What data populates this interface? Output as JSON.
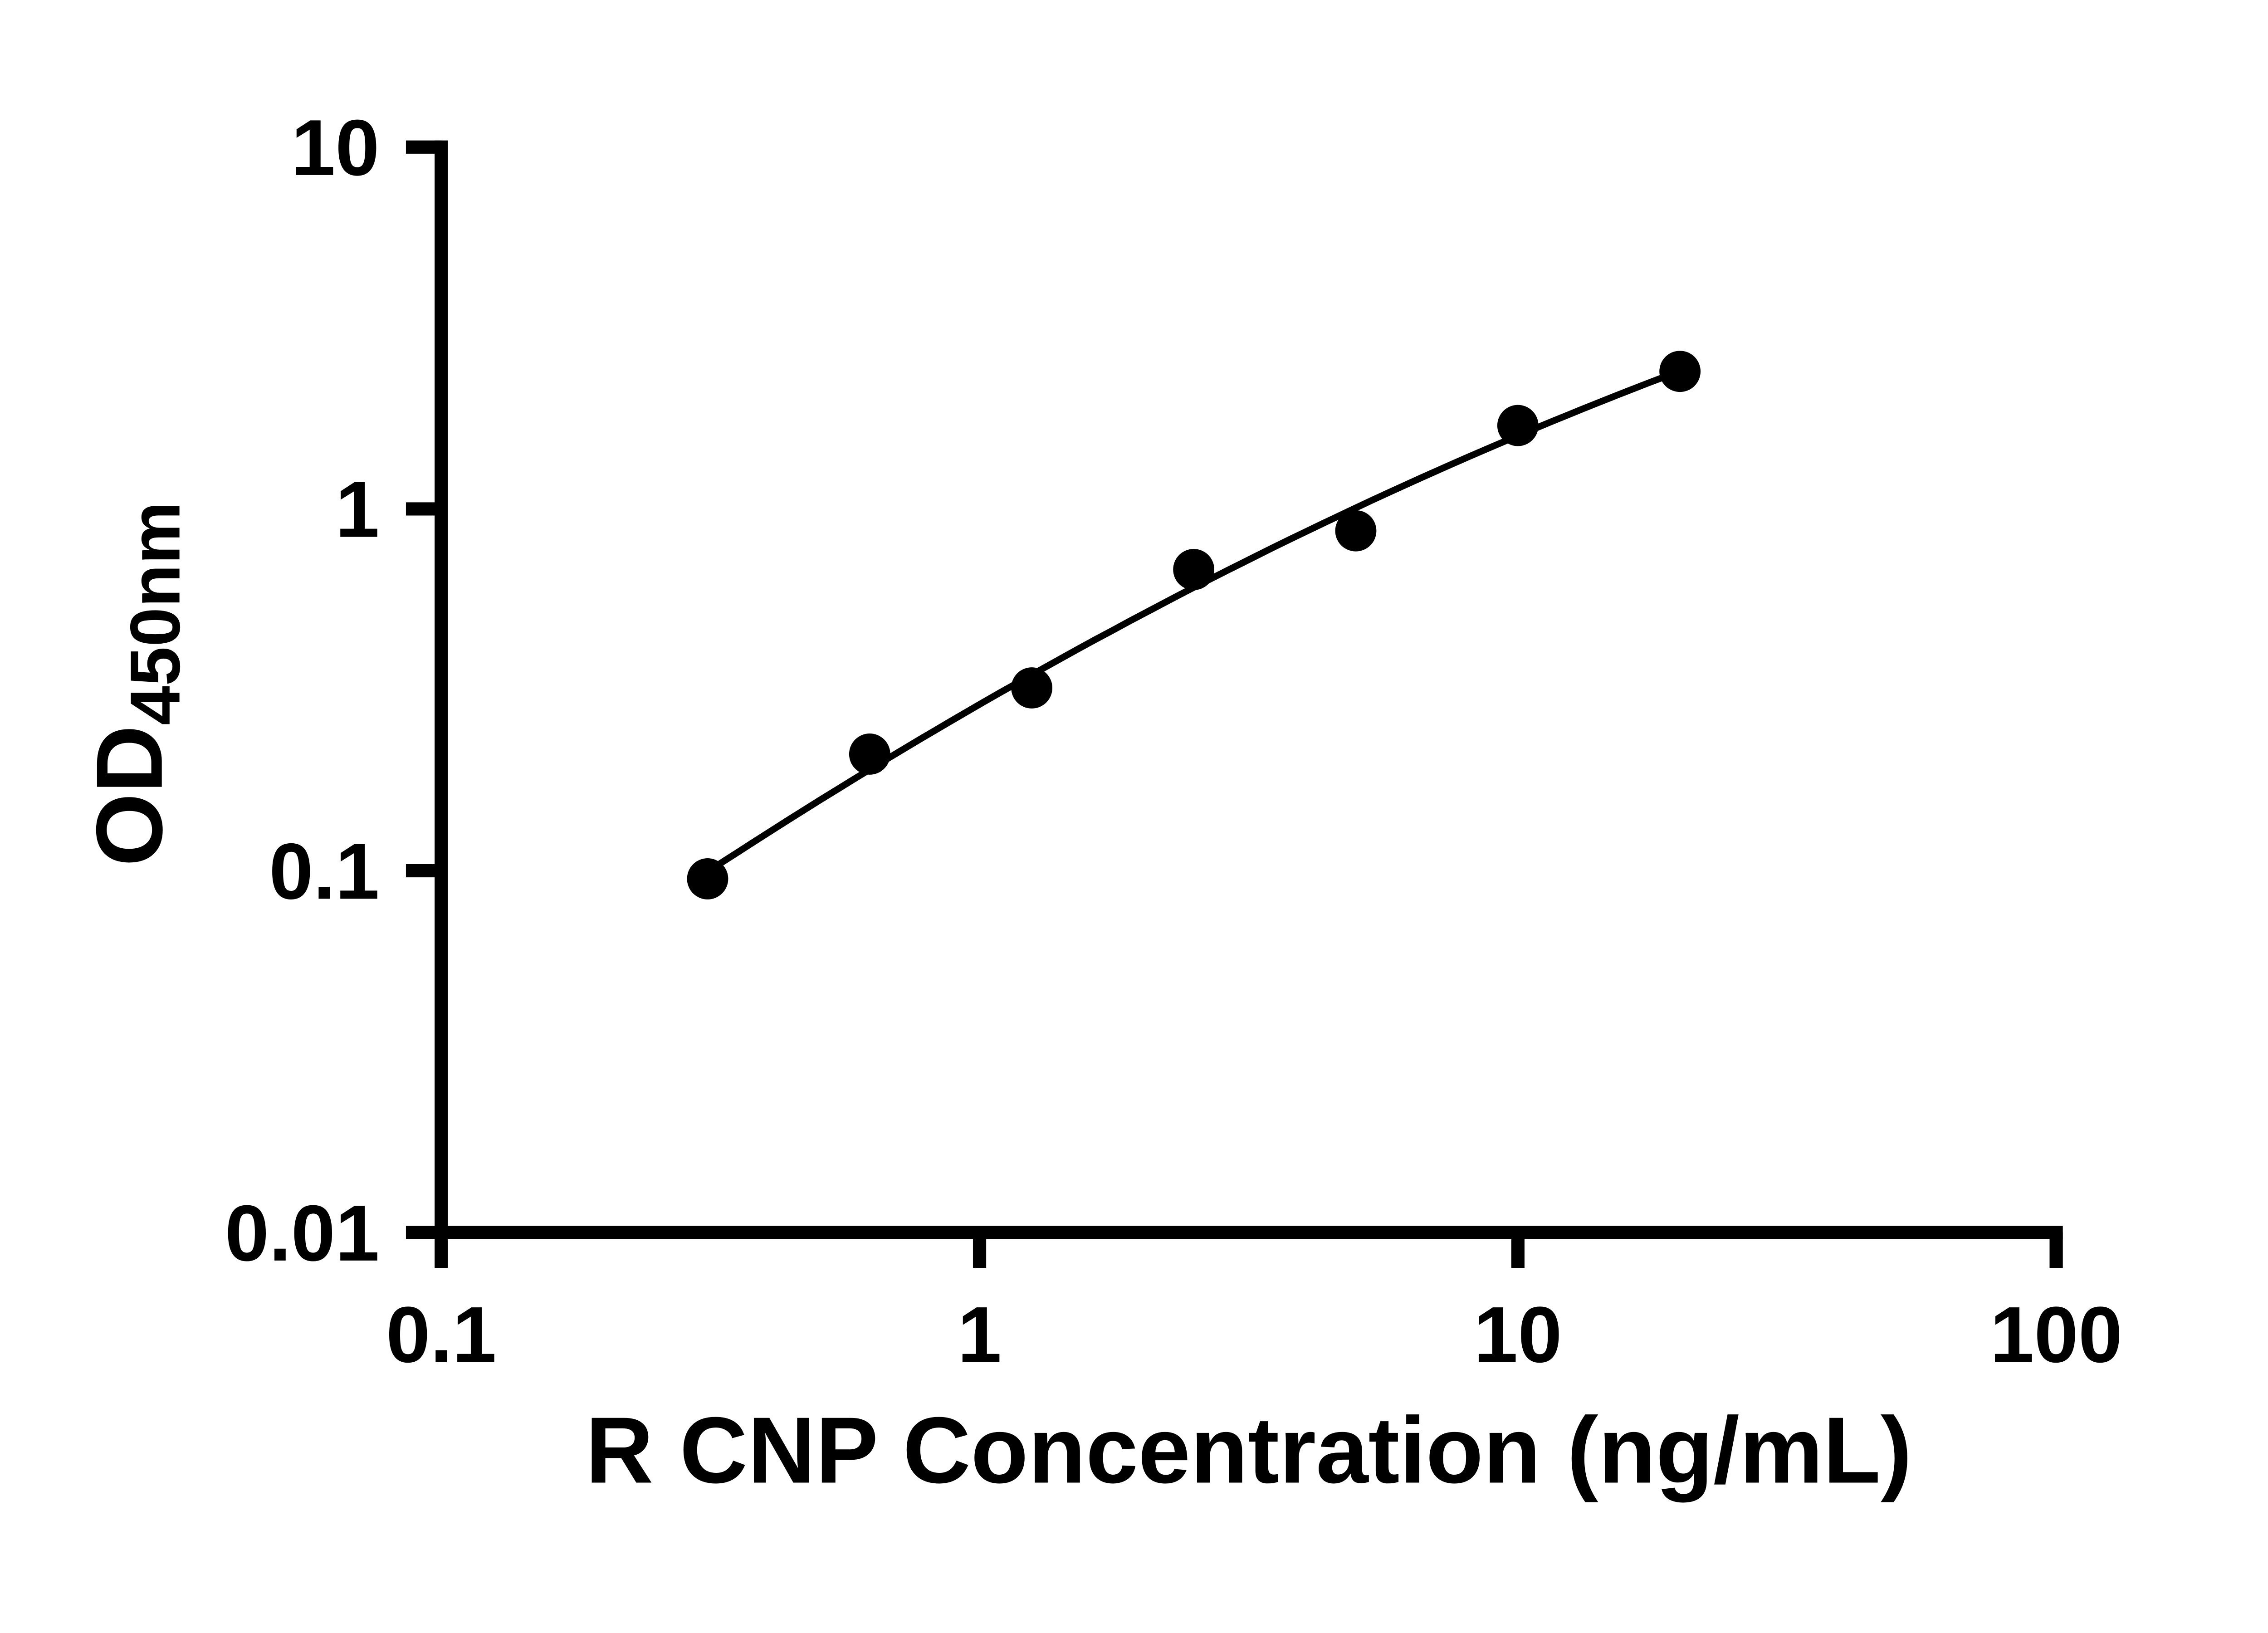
{
  "figure": {
    "background": "#ffffff"
  },
  "chart_data": {
    "type": "scatter",
    "title": "",
    "xlabel": "R CNP Concentration (ng/mL)",
    "ylabel": "OD",
    "ylabel_subscript": "450nm",
    "x_scale": "log",
    "y_scale": "log",
    "xlim": [
      0.1,
      100
    ],
    "ylim": [
      0.01,
      10
    ],
    "x_ticks": [
      0.1,
      1,
      10,
      100
    ],
    "x_tick_labels": [
      "0.1",
      "1",
      "10",
      "100"
    ],
    "y_ticks": [
      0.01,
      0.1,
      1,
      10
    ],
    "y_tick_labels": [
      "0.01",
      "0.1",
      "1",
      "10"
    ],
    "grid": false,
    "legend": false,
    "axis_color": "#000000",
    "series": [
      {
        "x": [
          0.3125,
          0.625,
          1.25,
          2.5,
          5,
          10,
          20
        ],
        "y": [
          0.095,
          0.21,
          0.32,
          0.68,
          0.87,
          1.7,
          2.4
        ],
        "marker": "filled-circle",
        "marker_color": "#000000",
        "line": "smooth-fit-curve",
        "line_color": "#000000"
      }
    ]
  }
}
